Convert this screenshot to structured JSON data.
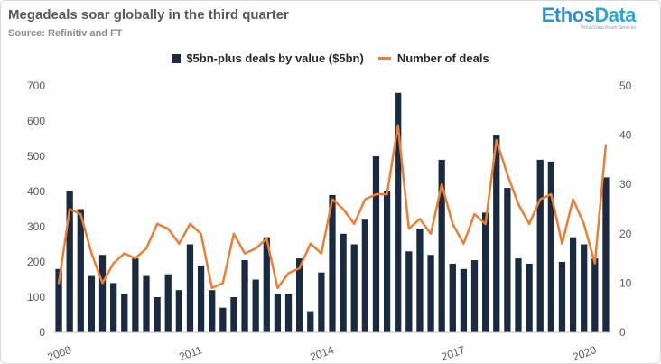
{
  "header": {
    "title": "Megadeals soar globally in the third quarter",
    "source": "Source: Refinitiv and FT"
  },
  "logo": {
    "part1": "Ethos",
    "part2": "Data",
    "tagline": "Virtual Data Room Services"
  },
  "colors": {
    "bars": "#1a2a40",
    "line": "#ed7d31",
    "axis_text": "#595959",
    "grid": "#e0e0e0"
  },
  "chart_data": {
    "type": "bar",
    "title": "Megadeals soar globally in the third quarter",
    "subtitle": "Source: Refinitiv and FT",
    "legend_position": "top-center",
    "grid": false,
    "x_tick_labels": [
      "2008",
      "2011",
      "2014",
      "2017",
      "2020"
    ],
    "x_tick_quarter_index": [
      0,
      12,
      24,
      36,
      48
    ],
    "y_left": {
      "range": [
        0,
        700
      ],
      "ticks": [
        0,
        100,
        200,
        300,
        400,
        500,
        600,
        700
      ]
    },
    "y_right": {
      "range": [
        0,
        50
      ],
      "ticks": [
        0,
        10,
        20,
        30,
        40,
        50
      ]
    },
    "series": [
      {
        "name": "$5bn-plus deals by value ($5bn)",
        "type": "bar",
        "axis": "left",
        "values": [
          180,
          400,
          350,
          160,
          220,
          140,
          110,
          210,
          160,
          100,
          165,
          120,
          250,
          190,
          120,
          70,
          100,
          205,
          150,
          270,
          110,
          110,
          210,
          60,
          170,
          390,
          280,
          250,
          320,
          500,
          400,
          680,
          230,
          295,
          220,
          490,
          195,
          180,
          205,
          340,
          560,
          410,
          210,
          195,
          490,
          485,
          200,
          270,
          250,
          210,
          440
        ]
      },
      {
        "name": "Number of deals",
        "type": "line",
        "axis": "right",
        "values": [
          10,
          25,
          24,
          16,
          10,
          14,
          16,
          15,
          17,
          22,
          21,
          18,
          22,
          20,
          9,
          10,
          20,
          16,
          17,
          19,
          9,
          12,
          13,
          18,
          16,
          27,
          25,
          22,
          27,
          28,
          28,
          42,
          21,
          23,
          20,
          30,
          22,
          18,
          24,
          22,
          39,
          32,
          26,
          22,
          27,
          28,
          18,
          27,
          22,
          14,
          38
        ]
      }
    ]
  }
}
